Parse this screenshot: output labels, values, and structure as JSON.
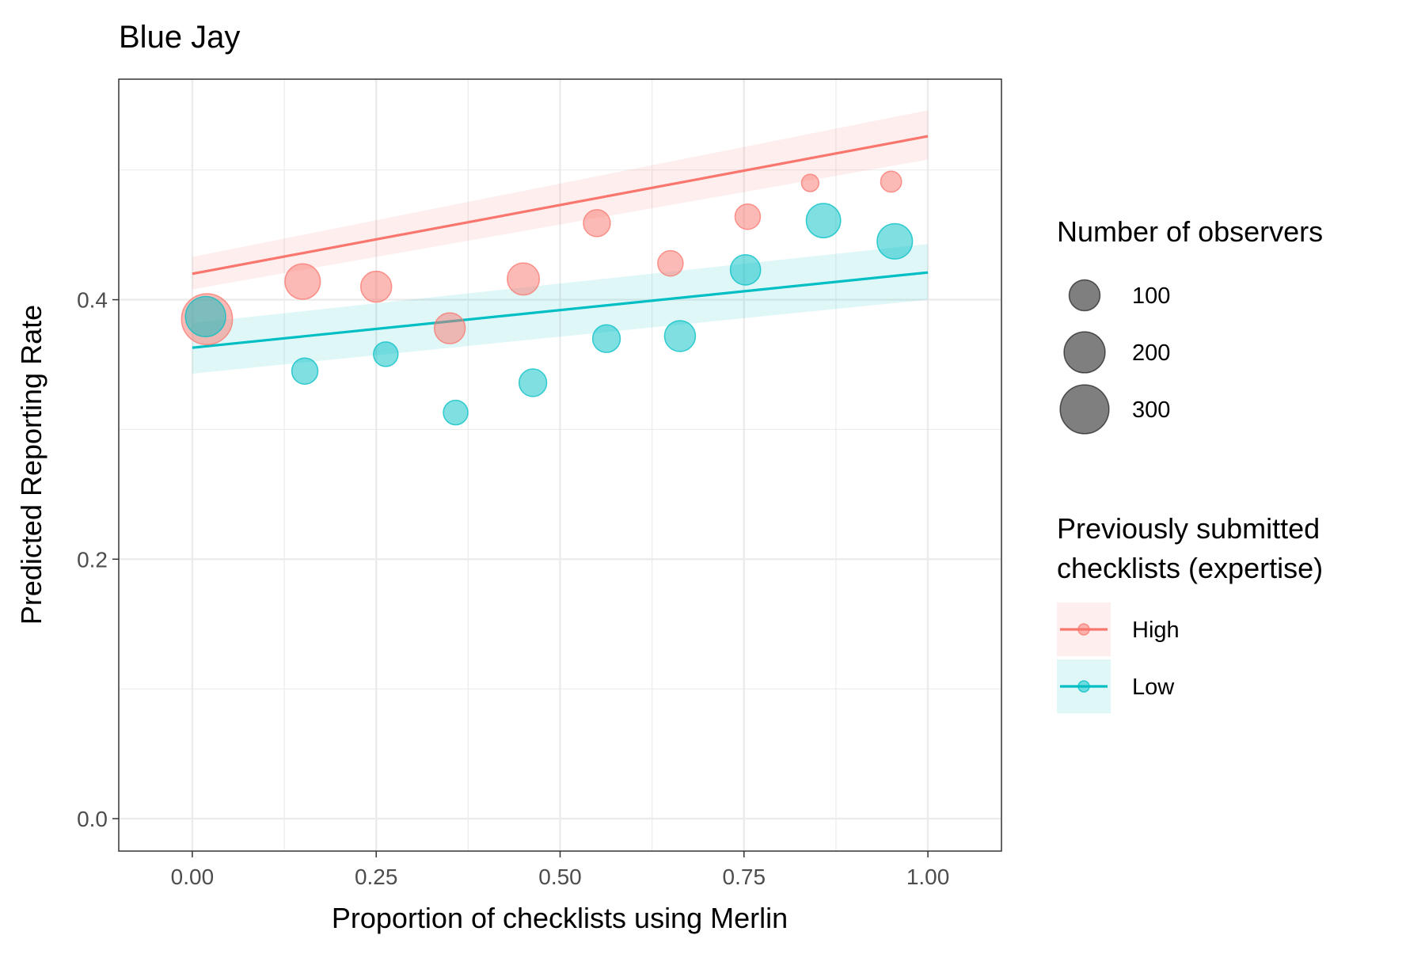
{
  "chart_data": {
    "type": "scatter",
    "title": "Blue Jay",
    "xlabel": "Proportion of checklists using Merlin",
    "ylabel": "Predicted Reporting Rate",
    "xlim": [
      -0.1,
      1.1
    ],
    "ylim": [
      -0.025,
      0.57
    ],
    "x_ticks": [
      0.0,
      0.25,
      0.5,
      0.75,
      1.0
    ],
    "x_tick_labels": [
      "0.00",
      "0.25",
      "0.50",
      "0.75",
      "1.00"
    ],
    "y_ticks": [
      0.0,
      0.2,
      0.4
    ],
    "y_tick_labels": [
      "0.0",
      "0.2",
      "0.4"
    ],
    "grid": true,
    "legend_placement": "right",
    "size_legend": {
      "title": "Number of observers",
      "items": [
        {
          "label": "100",
          "value": 100
        },
        {
          "label": "200",
          "value": 200
        },
        {
          "label": "300",
          "value": 300
        }
      ]
    },
    "color_legend": {
      "title_lines": [
        "Previously submitted",
        "checklists (expertise)"
      ],
      "items": [
        {
          "label": "High",
          "color": "#F8766D"
        },
        {
          "label": "Low",
          "color": "#00BFC4"
        }
      ]
    },
    "series": [
      {
        "name": "High",
        "color": "#F8766D",
        "trend": {
          "x": [
            0.0,
            1.0
          ],
          "y": [
            0.42,
            0.526
          ]
        },
        "ribbon": {
          "x": [
            0.0,
            1.0
          ],
          "lower": [
            0.408,
            0.508
          ],
          "upper": [
            0.433,
            0.546
          ]
        },
        "points": [
          {
            "x": 0.02,
            "y": 0.385,
            "n": 330
          },
          {
            "x": 0.15,
            "y": 0.414,
            "n": 140
          },
          {
            "x": 0.25,
            "y": 0.41,
            "n": 100
          },
          {
            "x": 0.35,
            "y": 0.378,
            "n": 100
          },
          {
            "x": 0.45,
            "y": 0.416,
            "n": 110
          },
          {
            "x": 0.55,
            "y": 0.459,
            "n": 70
          },
          {
            "x": 0.65,
            "y": 0.428,
            "n": 60
          },
          {
            "x": 0.755,
            "y": 0.464,
            "n": 60
          },
          {
            "x": 0.84,
            "y": 0.49,
            "n": 20
          },
          {
            "x": 0.95,
            "y": 0.491,
            "n": 35
          }
        ]
      },
      {
        "name": "Low",
        "color": "#00BFC4",
        "trend": {
          "x": [
            0.0,
            1.0
          ],
          "y": [
            0.363,
            0.421
          ]
        },
        "ribbon": {
          "x": [
            0.0,
            1.0
          ],
          "lower": [
            0.343,
            0.4
          ],
          "upper": [
            0.382,
            0.443
          ]
        },
        "points": [
          {
            "x": 0.018,
            "y": 0.387,
            "n": 190
          },
          {
            "x": 0.153,
            "y": 0.345,
            "n": 65
          },
          {
            "x": 0.263,
            "y": 0.358,
            "n": 55
          },
          {
            "x": 0.358,
            "y": 0.313,
            "n": 55
          },
          {
            "x": 0.463,
            "y": 0.336,
            "n": 75
          },
          {
            "x": 0.563,
            "y": 0.37,
            "n": 75
          },
          {
            "x": 0.663,
            "y": 0.372,
            "n": 100
          },
          {
            "x": 0.752,
            "y": 0.423,
            "n": 95
          },
          {
            "x": 0.858,
            "y": 0.461,
            "n": 130
          },
          {
            "x": 0.955,
            "y": 0.445,
            "n": 140
          }
        ]
      }
    ]
  }
}
